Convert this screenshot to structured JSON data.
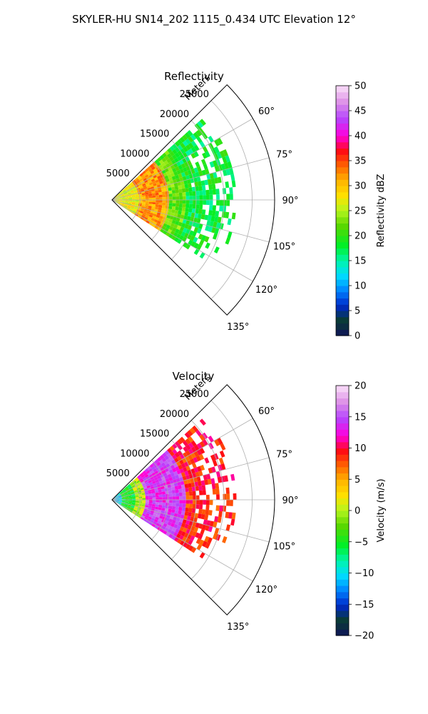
{
  "figure": {
    "suptitle": "SKYLER-HU  SN14_202  1115_0.434 UTC Elevation 12°"
  },
  "chart_data": [
    {
      "type": "heatmap",
      "subtype": "polar-sector",
      "title": "Reflectivity",
      "range_label": "Meters",
      "range_ticks": [
        "5000",
        "10000",
        "15000",
        "20000",
        "25000"
      ],
      "range_values": [
        5000,
        10000,
        15000,
        20000,
        25000
      ],
      "range_max": 29000,
      "azimuth_ticks": [
        "60°",
        "75°",
        "90°",
        "105°",
        "120°",
        "135°"
      ],
      "azimuth_values": [
        60,
        75,
        90,
        105,
        120,
        135
      ],
      "azimuth_range": [
        45,
        135
      ],
      "grid": true,
      "colorbar": {
        "label": "Reflectivity dBZ",
        "min": 0,
        "max": 50,
        "ticks": [
          "0",
          "5",
          "10",
          "15",
          "20",
          "25",
          "30",
          "35",
          "40",
          "45",
          "50"
        ],
        "tick_values": [
          0,
          5,
          10,
          15,
          20,
          25,
          30,
          35,
          40,
          45,
          50
        ]
      },
      "data_extent_m": [
        0,
        22000
      ],
      "field_summary": [
        {
          "range_m": [
            0,
            5000
          ],
          "value_dbz": 27
        },
        {
          "range_m": [
            5000,
            10000
          ],
          "value_dbz": 32
        },
        {
          "range_m": [
            10000,
            13000
          ],
          "value_dbz": 22
        },
        {
          "range_m": [
            13000,
            22000
          ],
          "value_dbz": 18
        }
      ]
    },
    {
      "type": "heatmap",
      "subtype": "polar-sector",
      "title": "Velocity",
      "range_label": "Meters",
      "range_ticks": [
        "5000",
        "10000",
        "15000",
        "20000",
        "25000"
      ],
      "range_values": [
        5000,
        10000,
        15000,
        20000,
        25000
      ],
      "range_max": 29000,
      "azimuth_ticks": [
        "60°",
        "75°",
        "90°",
        "105°",
        "120°",
        "135°"
      ],
      "azimuth_values": [
        60,
        75,
        90,
        105,
        120,
        135
      ],
      "azimuth_range": [
        45,
        135
      ],
      "grid": true,
      "colorbar": {
        "label": "Velocity (m/s)",
        "min": -20,
        "max": 20,
        "ticks": [
          "−20",
          "−15",
          "−10",
          "−5",
          "0",
          "5",
          "10",
          "15",
          "20"
        ],
        "tick_values": [
          -20,
          -15,
          -10,
          -5,
          0,
          5,
          10,
          15,
          20
        ]
      },
      "data_extent_m": [
        0,
        22000
      ],
      "field_summary": [
        {
          "range_m": [
            0,
            2000
          ],
          "value_ms": -11
        },
        {
          "range_m": [
            2000,
            4000
          ],
          "value_ms": -5
        },
        {
          "range_m": [
            4000,
            6000
          ],
          "value_ms": 0
        },
        {
          "range_m": [
            6000,
            13000
          ],
          "value_ms": 14
        },
        {
          "range_m": [
            13000,
            22000
          ],
          "value_ms": 9
        }
      ]
    }
  ]
}
